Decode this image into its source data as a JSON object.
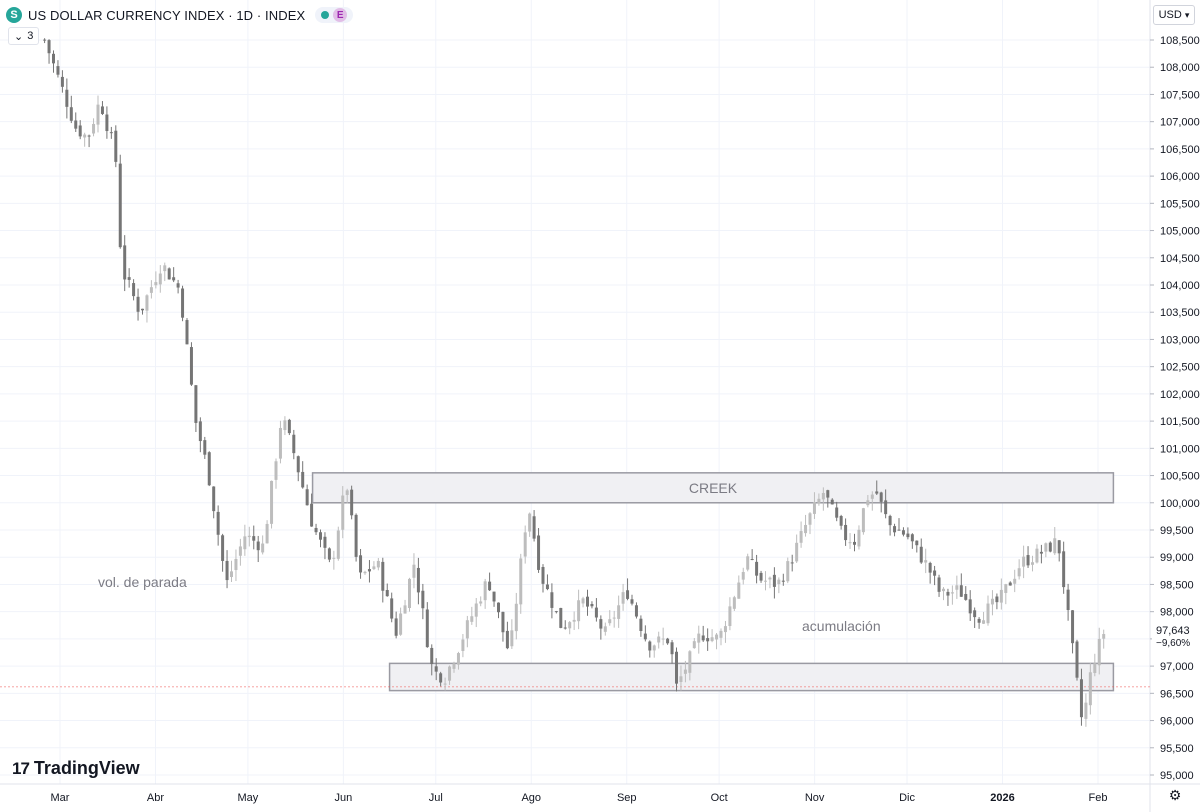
{
  "legend": {
    "logo_letter": "S",
    "title": "US DOLLAR CURRENCY INDEX · 1D · INDEX",
    "status_e": "E",
    "indicator_count": "3"
  },
  "price_axis": {
    "currency": "USD",
    "ticks": [
      "108,500",
      "108,000",
      "107,500",
      "107,000",
      "106,500",
      "106,000",
      "105,500",
      "105,000",
      "104,500",
      "104,000",
      "103,500",
      "103,000",
      "102,500",
      "102,000",
      "101,500",
      "101,000",
      "100,500",
      "100,000",
      "99,500",
      "99,000",
      "98,500",
      "98,000",
      "97,500",
      "97,000",
      "96,500",
      "96,000",
      "95,500",
      "95,000"
    ],
    "last_price": "97,643",
    "last_change": "−9,60%"
  },
  "time_axis": {
    "labels": [
      "Mar",
      "Abr",
      "May",
      "Jun",
      "Jul",
      "Ago",
      "Sep",
      "Oct",
      "Nov",
      "Dic",
      "2026",
      "Feb"
    ]
  },
  "annotations": {
    "creek": "CREEK",
    "stop_volume": "vol. de parada",
    "accumulation": "acumulación"
  },
  "branding": {
    "mark": "17",
    "name": "TradingView"
  },
  "colors": {
    "candle_up": "#bdbdbd",
    "candle_down": "#757575",
    "zone_fill": "#f0f0f3",
    "zone_border": "#9a9aa2",
    "grid": "#f0f3fa"
  },
  "chart_data": {
    "type": "candlestick",
    "title": "US DOLLAR CURRENCY INDEX · 1D · INDEX",
    "ylabel": "USD",
    "ylim": [
      94.75,
      108.65
    ],
    "x": [
      "Mar",
      "Abr",
      "May",
      "Jun",
      "Jul",
      "Ago",
      "Sep",
      "Oct",
      "Nov",
      "Dic",
      "2026",
      "Feb"
    ],
    "close_path": [
      [
        "2025-02-24",
        108.5
      ],
      [
        "2025-03-03",
        107.4
      ],
      [
        "2025-03-06",
        106.9
      ],
      [
        "2025-03-10",
        106.7
      ],
      [
        "2025-03-14",
        107.4
      ],
      [
        "2025-03-19",
        106.4
      ],
      [
        "2025-03-21",
        104.3
      ],
      [
        "2025-03-27",
        103.5
      ],
      [
        "2025-04-03",
        104.4
      ],
      [
        "2025-04-09",
        103.9
      ],
      [
        "2025-04-14",
        101.5
      ],
      [
        "2025-04-18",
        100.6
      ],
      [
        "2025-04-24",
        98.5
      ],
      [
        "2025-04-30",
        99.4
      ],
      [
        "2025-05-06",
        99.2
      ],
      [
        "2025-05-12",
        101.6
      ],
      [
        "2025-05-16",
        100.9
      ],
      [
        "2025-05-22",
        99.6
      ],
      [
        "2025-05-28",
        98.8
      ],
      [
        "2025-06-02",
        100.4
      ],
      [
        "2025-06-06",
        98.6
      ],
      [
        "2025-06-12",
        98.9
      ],
      [
        "2025-06-18",
        97.6
      ],
      [
        "2025-06-24",
        98.9
      ],
      [
        "2025-06-30",
        96.9
      ],
      [
        "2025-07-04",
        96.8
      ],
      [
        "2025-07-08",
        97.3
      ],
      [
        "2025-07-14",
        98.1
      ],
      [
        "2025-07-18",
        98.6
      ],
      [
        "2025-07-25",
        97.2
      ],
      [
        "2025-07-31",
        100.0
      ],
      [
        "2025-08-04",
        98.7
      ],
      [
        "2025-08-11",
        97.7
      ],
      [
        "2025-08-18",
        98.2
      ],
      [
        "2025-08-25",
        97.6
      ],
      [
        "2025-09-01",
        98.4
      ],
      [
        "2025-09-08",
        97.4
      ],
      [
        "2025-09-15",
        97.5
      ],
      [
        "2025-09-17",
        96.6
      ],
      [
        "2025-09-22",
        97.2
      ],
      [
        "2025-09-25",
        97.6
      ],
      [
        "2025-10-01",
        97.5
      ],
      [
        "2025-10-07",
        98.5
      ],
      [
        "2025-10-10",
        99.0
      ],
      [
        "2025-10-14",
        98.6
      ],
      [
        "2025-10-20",
        98.5
      ],
      [
        "2025-10-24",
        98.9
      ],
      [
        "2025-10-30",
        99.7
      ],
      [
        "2025-11-04",
        100.2
      ],
      [
        "2025-11-10",
        99.4
      ],
      [
        "2025-11-14",
        99.3
      ],
      [
        "2025-11-18",
        100.1
      ],
      [
        "2025-11-21",
        100.2
      ],
      [
        "2025-11-25",
        99.6
      ],
      [
        "2025-12-01",
        99.4
      ],
      [
        "2025-12-08",
        98.8
      ],
      [
        "2025-12-12",
        98.3
      ],
      [
        "2025-12-18",
        98.4
      ],
      [
        "2025-12-24",
        97.9
      ],
      [
        "2025-12-31",
        98.2
      ],
      [
        "2026-01-07",
        98.9
      ],
      [
        "2026-01-14",
        99.1
      ],
      [
        "2026-01-19",
        99.3
      ],
      [
        "2026-01-23",
        97.6
      ],
      [
        "2026-01-27",
        95.9
      ],
      [
        "2026-01-30",
        97.0
      ],
      [
        "2026-02-03",
        97.64
      ]
    ],
    "zones": [
      {
        "label": "CREEK",
        "from": "2025-05-22",
        "to": "2026-02-06",
        "low": 100.0,
        "high": 100.55
      },
      {
        "label": "",
        "from": "2025-06-16",
        "to": "2026-02-06",
        "low": 96.55,
        "high": 97.05
      }
    ],
    "last_price": 97.643,
    "change_pct": -9.6,
    "grid": true
  }
}
